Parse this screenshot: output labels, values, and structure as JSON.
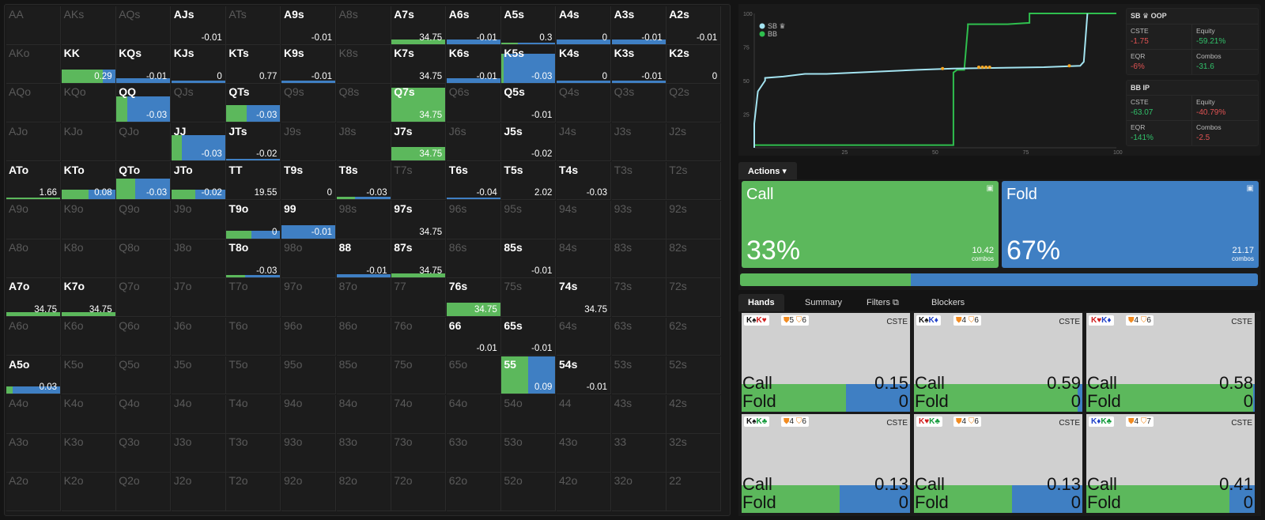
{
  "grid": {
    "hands": [
      [
        "AA",
        "AKs",
        "AQs",
        "AJs",
        "ATs",
        "A9s",
        "A8s",
        "A7s",
        "A6s",
        "A5s",
        "A4s",
        "A3s",
        "A2s"
      ],
      [
        "AKo",
        "KK",
        "KQs",
        "KJs",
        "KTs",
        "K9s",
        "K8s",
        "K7s",
        "K6s",
        "K5s",
        "K4s",
        "K3s",
        "K2s"
      ],
      [
        "AQo",
        "KQo",
        "QQ",
        "QJs",
        "QTs",
        "Q9s",
        "Q8s",
        "Q7s",
        "Q6s",
        "Q5s",
        "Q4s",
        "Q3s",
        "Q2s"
      ],
      [
        "AJo",
        "KJo",
        "QJo",
        "JJ",
        "JTs",
        "J9s",
        "J8s",
        "J7s",
        "J6s",
        "J5s",
        "J4s",
        "J3s",
        "J2s"
      ],
      [
        "ATo",
        "KTo",
        "QTo",
        "JTo",
        "TT",
        "T9s",
        "T8s",
        "T7s",
        "T6s",
        "T5s",
        "T4s",
        "T3s",
        "T2s"
      ],
      [
        "A9o",
        "K9o",
        "Q9o",
        "J9o",
        "T9o",
        "99",
        "98s",
        "97s",
        "96s",
        "95s",
        "94s",
        "93s",
        "92s"
      ],
      [
        "A8o",
        "K8o",
        "Q8o",
        "J8o",
        "T8o",
        "98o",
        "88",
        "87s",
        "86s",
        "85s",
        "84s",
        "83s",
        "82s"
      ],
      [
        "A7o",
        "K7o",
        "Q7o",
        "J7o",
        "T7o",
        "97o",
        "87o",
        "77",
        "76s",
        "75s",
        "74s",
        "73s",
        "72s"
      ],
      [
        "A6o",
        "K6o",
        "Q6o",
        "J6o",
        "T6o",
        "96o",
        "86o",
        "76o",
        "66",
        "65s",
        "64s",
        "63s",
        "62s"
      ],
      [
        "A5o",
        "K5o",
        "Q5o",
        "J5o",
        "T5o",
        "95o",
        "85o",
        "75o",
        "65o",
        "55",
        "54s",
        "53s",
        "52s"
      ],
      [
        "A4o",
        "K4o",
        "Q4o",
        "J4o",
        "T4o",
        "94o",
        "84o",
        "74o",
        "64o",
        "54o",
        "44",
        "43s",
        "42s"
      ],
      [
        "A3o",
        "K3o",
        "Q3o",
        "J3o",
        "T3o",
        "93o",
        "83o",
        "73o",
        "63o",
        "53o",
        "43o",
        "33",
        "32s"
      ],
      [
        "A2o",
        "K2o",
        "Q2o",
        "J2o",
        "T2o",
        "92o",
        "82o",
        "72o",
        "62o",
        "52o",
        "42o",
        "32o",
        "22"
      ]
    ],
    "cells": {
      "AJs": {
        "v": "-0.01",
        "c": 0,
        "f": 0,
        "h": 0
      },
      "A9s": {
        "v": "-0.01",
        "c": 0,
        "f": 0,
        "h": 0
      },
      "A7s": {
        "v": "34.75",
        "c": 1,
        "f": 0,
        "h": 0.12
      },
      "A6s": {
        "v": "-0.01",
        "c": 0,
        "f": 1,
        "h": 0.12
      },
      "A5s": {
        "v": "0.3",
        "c": 0.3,
        "f": 0.7,
        "h": 0.03
      },
      "A4s": {
        "v": "0",
        "c": 0,
        "f": 1,
        "h": 0.12
      },
      "A3s": {
        "v": "-0.01",
        "c": 0,
        "f": 1,
        "h": 0.12
      },
      "A2s": {
        "v": "-0.01",
        "c": 0,
        "f": 0,
        "h": 0
      },
      "KK": {
        "v": "0.29",
        "c": 0.77,
        "f": 0.23,
        "h": 0.35
      },
      "KQs": {
        "v": "-0.01",
        "c": 0,
        "f": 1,
        "h": 0.12
      },
      "KJs": {
        "v": "0",
        "c": 0,
        "f": 1,
        "h": 0.06
      },
      "KTs": {
        "v": "0.77",
        "c": 0,
        "f": 0,
        "h": 0
      },
      "K9s": {
        "v": "-0.01",
        "c": 0,
        "f": 1,
        "h": 0.05
      },
      "K7s": {
        "v": "34.75",
        "c": 0,
        "f": 0,
        "h": 0
      },
      "K6s": {
        "v": "-0.01",
        "c": 0,
        "f": 1,
        "h": 0.12
      },
      "K5s": {
        "v": "-0.03",
        "c": 0.04,
        "f": 0.96,
        "h": 0.78
      },
      "K4s": {
        "v": "0",
        "c": 0,
        "f": 1,
        "h": 0.05
      },
      "K3s": {
        "v": "-0.01",
        "c": 0,
        "f": 1,
        "h": 0.05
      },
      "K2s": {
        "v": "0",
        "c": 0,
        "f": 0,
        "h": 0
      },
      "QQ": {
        "v": "-0.03",
        "c": 0.2,
        "f": 0.8,
        "h": 0.68
      },
      "QTs": {
        "v": "-0.03",
        "c": 0.38,
        "f": 0.62,
        "h": 0.45
      },
      "Q7s": {
        "v": "34.75",
        "c": 1,
        "f": 0,
        "h": 0.9
      },
      "Q5s": {
        "v": "-0.01",
        "c": 0,
        "f": 0,
        "h": 0
      },
      "JJ": {
        "v": "-0.03",
        "c": 0.2,
        "f": 0.8,
        "h": 0.68
      },
      "JTs": {
        "v": "-0.02",
        "c": 0,
        "f": 1,
        "h": 0.05
      },
      "J7s": {
        "v": "34.75",
        "c": 1,
        "f": 0,
        "h": 0.35
      },
      "J5s": {
        "v": "-0.02",
        "c": 0,
        "f": 0,
        "h": 0
      },
      "ATo": {
        "v": "1.66",
        "c": 1,
        "f": 0,
        "h": 0.04
      },
      "KTo": {
        "v": "0.08",
        "c": 0.5,
        "f": 0.5,
        "h": 0.25
      },
      "QTo": {
        "v": "-0.03",
        "c": 0.35,
        "f": 0.65,
        "h": 0.55
      },
      "JTo": {
        "v": "-0.02",
        "c": 0.45,
        "f": 0.55,
        "h": 0.25
      },
      "TT": {
        "v": "19.55",
        "c": 0,
        "f": 0,
        "h": 0
      },
      "T9s": {
        "v": "0",
        "c": 0,
        "f": 0,
        "h": 0
      },
      "T8s": {
        "v": "-0.03",
        "c": 0.35,
        "f": 0.65,
        "h": 0.07
      },
      "T6s": {
        "v": "-0.04",
        "c": 0,
        "f": 1,
        "h": 0.04
      },
      "T5s": {
        "v": "2.02",
        "c": 0,
        "f": 0,
        "h": 0
      },
      "T4s": {
        "v": "-0.03",
        "c": 0,
        "f": 0,
        "h": 0
      },
      "T9o": {
        "v": "0",
        "c": 0.47,
        "f": 0.53,
        "h": 0.2
      },
      "99": {
        "v": "-0.01",
        "c": 0,
        "f": 1,
        "h": 0.35
      },
      "97s": {
        "v": "34.75",
        "c": 0,
        "f": 0,
        "h": 0
      },
      "T8o": {
        "v": "-0.03",
        "c": 0.35,
        "f": 0.65,
        "h": 0.05
      },
      "88": {
        "v": "-0.01",
        "c": 0,
        "f": 1,
        "h": 0.07
      },
      "87s": {
        "v": "34.75",
        "c": 1,
        "f": 0,
        "h": 0.1
      },
      "85s": {
        "v": "-0.01",
        "c": 0,
        "f": 0,
        "h": 0
      },
      "A7o": {
        "v": "34.75",
        "c": 1,
        "f": 0,
        "h": 0.1
      },
      "K7o": {
        "v": "34.75",
        "c": 1,
        "f": 0,
        "h": 0.1
      },
      "76s": {
        "v": "34.75",
        "c": 1,
        "f": 0,
        "h": 0.35
      },
      "74s": {
        "v": "34.75",
        "c": 0,
        "f": 0,
        "h": 0
      },
      "66": {
        "v": "-0.01",
        "c": 0,
        "f": 0,
        "h": 0
      },
      "65s": {
        "v": "-0.01",
        "c": 0,
        "f": 0,
        "h": 0
      },
      "A5o": {
        "v": "0.03",
        "c": 0.12,
        "f": 0.88,
        "h": 0.2
      },
      "55": {
        "v": "0.09",
        "c": 0.5,
        "f": 0.5,
        "h": 1
      },
      "54s": {
        "v": "-0.01",
        "c": 0,
        "f": 0,
        "h": 0
      }
    },
    "active": [
      "AJs",
      "A9s",
      "A7s",
      "A6s",
      "A5s",
      "A4s",
      "A3s",
      "A2s",
      "KK",
      "KQs",
      "KJs",
      "KTs",
      "K9s",
      "K7s",
      "K6s",
      "K5s",
      "K4s",
      "K3s",
      "K2s",
      "QQ",
      "QTs",
      "Q7s",
      "Q5s",
      "JJ",
      "JTs",
      "J7s",
      "J5s",
      "ATo",
      "KTo",
      "QTo",
      "JTo",
      "TT",
      "T9s",
      "T8s",
      "T6s",
      "T5s",
      "T4s",
      "T9o",
      "99",
      "97s",
      "T8o",
      "88",
      "87s",
      "85s",
      "A7o",
      "K7o",
      "76s",
      "74s",
      "66",
      "65s",
      "A5o",
      "55",
      "54s"
    ]
  },
  "chart": {
    "y_ticks": [
      "100",
      "75",
      "50",
      "25"
    ],
    "x_ticks": [
      "25",
      "50",
      "75",
      "100"
    ],
    "legend": [
      {
        "name": "SB",
        "color": "#a3e3f0",
        "glyph": "♛"
      },
      {
        "name": "BB",
        "color": "#2fbf4e"
      }
    ]
  },
  "stats": {
    "sb": {
      "title": "SB",
      "glyph": "♛",
      "pos": "OOP",
      "cste_l": "CSTE",
      "cste": "-1.75",
      "eq_l": "Equity",
      "eq": "-59.21%",
      "eqr_l": "EQR",
      "eqr": "-6%",
      "co_l": "Combos",
      "co": "-31.6"
    },
    "bb": {
      "title": "BB",
      "pos": "IP",
      "cste_l": "CSTE",
      "cste": "-63.07",
      "eq_l": "Equity",
      "eq": "-40.79%",
      "eqr_l": "EQR",
      "eqr": "-141%",
      "co_l": "Combos",
      "co": "-2.5"
    }
  },
  "actions": {
    "tab": "Actions ▾",
    "call": {
      "label": "Call",
      "pct": "33%",
      "combos": "10.42",
      "combos_l": "combos",
      "color": "#5cb85c",
      "share": 0.33
    },
    "fold": {
      "label": "Fold",
      "pct": "67%",
      "combos": "21.17",
      "combos_l": "combos",
      "color": "#3f7fc3",
      "share": 0.67
    }
  },
  "tabs": {
    "hands": "Hands",
    "summary": "Summary",
    "filters": "Filters ⧉",
    "blockers": "Blockers"
  },
  "hands": [
    {
      "c1": "K♠",
      "c2": "K♥",
      "s1": "sh",
      "s2": "hr",
      "b1": "5",
      "b2": "6",
      "call": "0.15",
      "fold": "0",
      "cf": 0.62
    },
    {
      "c1": "K♠",
      "c2": "K♦",
      "s1": "sh",
      "s2": "dm",
      "b1": "4",
      "b2": "6",
      "call": "0.59",
      "fold": "0",
      "cf": 0.97
    },
    {
      "c1": "K♥",
      "c2": "K♦",
      "s1": "hr",
      "s2": "dm",
      "b1": "4",
      "b2": "6",
      "call": "0.58",
      "fold": "0",
      "cf": 0.99
    },
    {
      "c1": "K♠",
      "c2": "K♣",
      "s1": "sh",
      "s2": "cl",
      "b1": "4",
      "b2": "6",
      "call": "0.13",
      "fold": "0",
      "cf": 0.58
    },
    {
      "c1": "K♥",
      "c2": "K♣",
      "s1": "hr",
      "s2": "cl",
      "b1": "4",
      "b2": "6",
      "call": "0.13",
      "fold": "0",
      "cf": 0.58
    },
    {
      "c1": "K♦",
      "c2": "K♣",
      "s1": "dm",
      "s2": "cl",
      "b1": "4",
      "b2": "7",
      "call": "0.41",
      "fold": "0",
      "cf": 0.85
    }
  ],
  "hand_labels": {
    "cste": "CSTE",
    "call": "Call",
    "fold": "Fold"
  }
}
